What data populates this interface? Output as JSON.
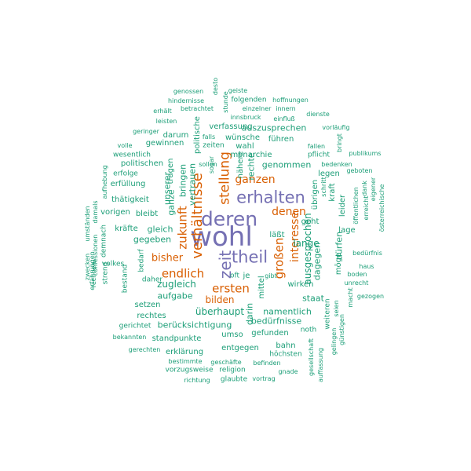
{
  "colors": {
    "large": "#7570b3",
    "medium": "#d95f02",
    "small": "#1b9e77"
  },
  "words": [
    {
      "text": "wohl",
      "c": "large"
    },
    {
      "text": "deren",
      "c": "large"
    },
    {
      "text": "erhalten",
      "c": "large"
    },
    {
      "text": "theil",
      "c": "large"
    },
    {
      "text": "zeit",
      "c": "large"
    },
    {
      "text": "verhältnisse",
      "c": "medium"
    },
    {
      "text": "zukunft",
      "c": "medium"
    },
    {
      "text": "stellung",
      "c": "medium"
    },
    {
      "text": "ganzen",
      "c": "medium"
    },
    {
      "text": "denen",
      "c": "medium"
    },
    {
      "text": "interesse",
      "c": "medium"
    },
    {
      "text": "großen",
      "c": "medium"
    },
    {
      "text": "ersten",
      "c": "medium"
    },
    {
      "text": "endlich",
      "c": "medium"
    },
    {
      "text": "bisher",
      "c": "medium"
    },
    {
      "text": "bilden",
      "c": "medium"
    },
    {
      "text": "genossen",
      "c": "small"
    },
    {
      "text": "desto",
      "c": "small"
    },
    {
      "text": "geiste",
      "c": "small"
    },
    {
      "text": "stunde",
      "c": "small"
    },
    {
      "text": "hindernisse",
      "c": "small"
    },
    {
      "text": "folgenden",
      "c": "small"
    },
    {
      "text": "hoffnungen",
      "c": "small"
    },
    {
      "text": "erhält",
      "c": "small"
    },
    {
      "text": "betrachtet",
      "c": "small"
    },
    {
      "text": "einzelner",
      "c": "small"
    },
    {
      "text": "innern",
      "c": "small"
    },
    {
      "text": "leisten",
      "c": "small"
    },
    {
      "text": "innsbruck",
      "c": "small"
    },
    {
      "text": "einfluß",
      "c": "small"
    },
    {
      "text": "dienste",
      "c": "small"
    },
    {
      "text": "politische",
      "c": "small"
    },
    {
      "text": "verfassung",
      "c": "small"
    },
    {
      "text": "auszusprechen",
      "c": "small"
    },
    {
      "text": "vorläufig",
      "c": "small"
    },
    {
      "text": "geringer",
      "c": "small"
    },
    {
      "text": "darum",
      "c": "small"
    },
    {
      "text": "falls",
      "c": "small"
    },
    {
      "text": "wünsche",
      "c": "small"
    },
    {
      "text": "führen",
      "c": "small"
    },
    {
      "text": "bringt",
      "c": "small"
    },
    {
      "text": "volle",
      "c": "small"
    },
    {
      "text": "gewinnen",
      "c": "small"
    },
    {
      "text": "zeiten",
      "c": "small"
    },
    {
      "text": "wahl",
      "c": "small"
    },
    {
      "text": "fallen",
      "c": "small"
    },
    {
      "text": "wesentlich",
      "c": "small"
    },
    {
      "text": "monarchie",
      "c": "small"
    },
    {
      "text": "pflicht",
      "c": "small"
    },
    {
      "text": "publikums",
      "c": "small"
    },
    {
      "text": "politischen",
      "c": "small"
    },
    {
      "text": "sogar",
      "c": "small"
    },
    {
      "text": "sollen",
      "c": "small"
    },
    {
      "text": "nähere",
      "c": "small"
    },
    {
      "text": "genommen",
      "c": "small"
    },
    {
      "text": "bedenken",
      "c": "small"
    },
    {
      "text": "erfolge",
      "c": "small"
    },
    {
      "text": "tragen",
      "c": "small"
    },
    {
      "text": "rechte",
      "c": "small"
    },
    {
      "text": "legen",
      "c": "small"
    },
    {
      "text": "geboten",
      "c": "small"
    },
    {
      "text": "aufhebung",
      "c": "small"
    },
    {
      "text": "erfüllung",
      "c": "small"
    },
    {
      "text": "schritt",
      "c": "small"
    },
    {
      "text": "kraft",
      "c": "small"
    },
    {
      "text": "dank",
      "c": "small"
    },
    {
      "text": "eigener",
      "c": "small"
    },
    {
      "text": "österreichische",
      "c": "small"
    },
    {
      "text": "thätigkeit",
      "c": "small"
    },
    {
      "text": "bringen",
      "c": "small"
    },
    {
      "text": "vertrauen",
      "c": "small"
    },
    {
      "text": "öffentlichen",
      "c": "small"
    },
    {
      "text": "damals",
      "c": "small"
    },
    {
      "text": "unserer",
      "c": "small"
    },
    {
      "text": "ganze",
      "c": "small"
    },
    {
      "text": "übrigen",
      "c": "small"
    },
    {
      "text": "leider",
      "c": "small"
    },
    {
      "text": "erreicht",
      "c": "small"
    },
    {
      "text": "vorigen",
      "c": "small"
    },
    {
      "text": "bleibt",
      "c": "small"
    },
    {
      "text": "geht",
      "c": "small"
    },
    {
      "text": "umständen",
      "c": "small"
    },
    {
      "text": "kräfte",
      "c": "small"
    },
    {
      "text": "gleich",
      "c": "small"
    },
    {
      "text": "lage",
      "c": "small"
    },
    {
      "text": "läßt",
      "c": "small"
    },
    {
      "text": "confessionen",
      "c": "small"
    },
    {
      "text": "demnach",
      "c": "small"
    },
    {
      "text": "gegeben",
      "c": "small"
    },
    {
      "text": "lange",
      "c": "small"
    },
    {
      "text": "ausgesprochen",
      "c": "small"
    },
    {
      "text": "dürfen",
      "c": "small"
    },
    {
      "text": "bedürfnis",
      "c": "small"
    },
    {
      "text": "erfahrungen",
      "c": "small"
    },
    {
      "text": "dagegen",
      "c": "small"
    },
    {
      "text": "möge",
      "c": "small"
    },
    {
      "text": "zwecken",
      "c": "small"
    },
    {
      "text": "rechnen",
      "c": "small"
    },
    {
      "text": "volkes",
      "c": "small"
    },
    {
      "text": "streng",
      "c": "small"
    },
    {
      "text": "bestand",
      "c": "small"
    },
    {
      "text": "bedarf",
      "c": "small"
    },
    {
      "text": "daher",
      "c": "small"
    },
    {
      "text": "haus",
      "c": "small"
    },
    {
      "text": "boden",
      "c": "small"
    },
    {
      "text": "oft",
      "c": "small"
    },
    {
      "text": "je",
      "c": "small"
    },
    {
      "text": "zugleich",
      "c": "small"
    },
    {
      "text": "unrecht",
      "c": "small"
    },
    {
      "text": "mittel",
      "c": "small"
    },
    {
      "text": "aufgabe",
      "c": "small"
    },
    {
      "text": "gibt",
      "c": "small"
    },
    {
      "text": "wirken",
      "c": "small"
    },
    {
      "text": "staat",
      "c": "small"
    },
    {
      "text": "setzen",
      "c": "small"
    },
    {
      "text": "macht",
      "c": "small"
    },
    {
      "text": "gezogen",
      "c": "small"
    },
    {
      "text": "überhaupt",
      "c": "small"
    },
    {
      "text": "namentlich",
      "c": "small"
    },
    {
      "text": "rechtes",
      "c": "small"
    },
    {
      "text": "seien",
      "c": "small"
    },
    {
      "text": "weiteren",
      "c": "small"
    },
    {
      "text": "darin",
      "c": "small"
    },
    {
      "text": "bedürfnisse",
      "c": "small"
    },
    {
      "text": "gerichtet",
      "c": "small"
    },
    {
      "text": "berücksichtigung",
      "c": "small"
    },
    {
      "text": "noth",
      "c": "small"
    },
    {
      "text": "günstigen",
      "c": "small"
    },
    {
      "text": "standpunkte",
      "c": "small"
    },
    {
      "text": "umso",
      "c": "small"
    },
    {
      "text": "gefunden",
      "c": "small"
    },
    {
      "text": "bekannten",
      "c": "small"
    },
    {
      "text": "gelingen",
      "c": "small"
    },
    {
      "text": "entgegen",
      "c": "small"
    },
    {
      "text": "bahn",
      "c": "small"
    },
    {
      "text": "gerechten",
      "c": "small"
    },
    {
      "text": "erklärung",
      "c": "small"
    },
    {
      "text": "höchsten",
      "c": "small"
    },
    {
      "text": "gesellschaft",
      "c": "small"
    },
    {
      "text": "bestimmte",
      "c": "small"
    },
    {
      "text": "geschäfte",
      "c": "small"
    },
    {
      "text": "befinden",
      "c": "small"
    },
    {
      "text": "auffassung",
      "c": "small"
    },
    {
      "text": "vorzugsweise",
      "c": "small"
    },
    {
      "text": "religion",
      "c": "small"
    },
    {
      "text": "gnade",
      "c": "small"
    },
    {
      "text": "richtung",
      "c": "small"
    },
    {
      "text": "glaubte",
      "c": "small"
    },
    {
      "text": "vortrag",
      "c": "small"
    }
  ]
}
